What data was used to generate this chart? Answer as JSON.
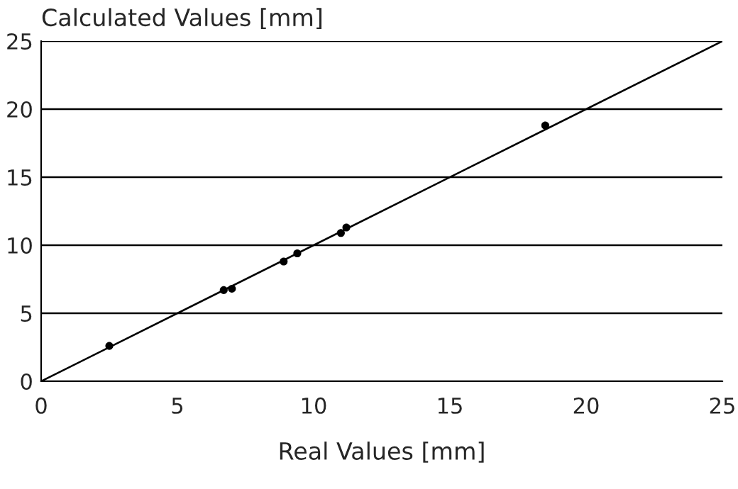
{
  "chart_data": {
    "type": "scatter",
    "xlabel": "Real Values [mm]",
    "ylabel": "Calculated Values [mm]",
    "series": [
      {
        "color": "#000000",
        "marker": "circle",
        "x": [
          2.5,
          6.7,
          7.0,
          8.9,
          9.4,
          11.0,
          11.2,
          18.5
        ],
        "values": [
          2.6,
          6.7,
          6.8,
          8.8,
          9.4,
          10.9,
          11.3,
          18.8
        ]
      },
      {
        "type": "line",
        "color": "#000000",
        "marker": "none",
        "x": [
          0,
          25
        ],
        "values": [
          0,
          25
        ]
      }
    ],
    "xlim": [
      0,
      25
    ],
    "ylim": [
      0,
      25
    ],
    "xticks": [
      0,
      5,
      10,
      15,
      20,
      25
    ],
    "yticks": [
      0,
      5,
      10,
      15,
      20,
      25
    ],
    "grid": "y"
  }
}
